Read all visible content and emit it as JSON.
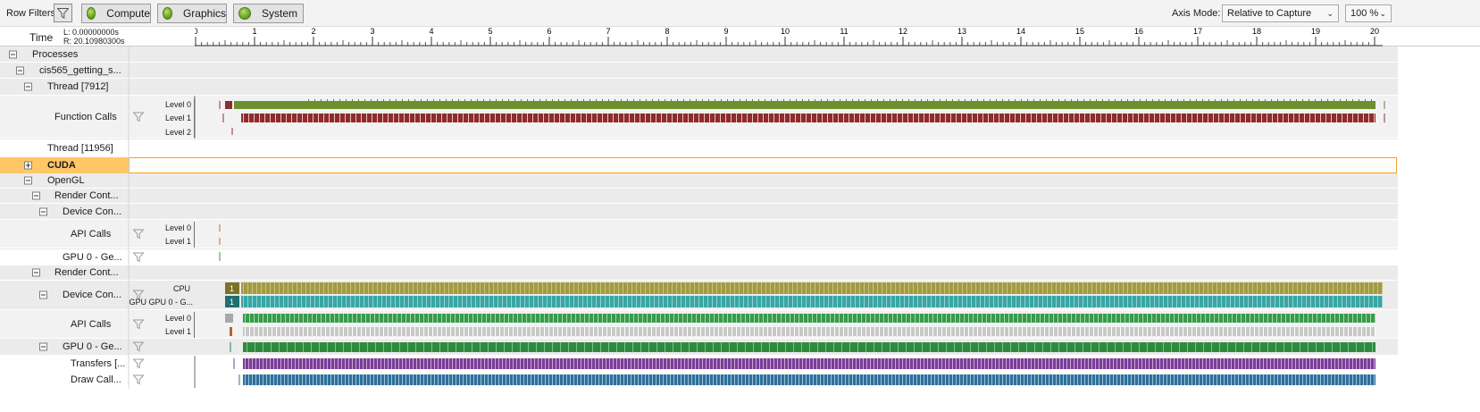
{
  "toolbar": {
    "row_filters_label": "Row Filters",
    "buttons": [
      {
        "label": "Compute"
      },
      {
        "label": "Graphics"
      },
      {
        "label": "System"
      }
    ],
    "axis_mode_label": "Axis Mode:",
    "axis_mode_value": "Relative to Capture",
    "zoom_value": "100 %"
  },
  "time": {
    "title": "Time",
    "left": "L:  0.00000000s",
    "right": "R:  20.10980300s",
    "ticks": [
      "0",
      "1",
      "2",
      "3",
      "4",
      "5",
      "6",
      "7",
      "8",
      "9",
      "10",
      "11",
      "12",
      "13",
      "14",
      "15",
      "16",
      "17",
      "18",
      "19",
      "20"
    ]
  },
  "rows": {
    "processes": "Processes",
    "process_name": "cis565_getting_s...",
    "thread1": "Thread [7912]",
    "function_calls": "Function Calls",
    "thread2": "Thread [11956]",
    "cuda": "CUDA",
    "opengl": "OpenGL",
    "render_context_1": "Render Cont...",
    "device_context_1": "Device Con...",
    "api_calls_1": "API Calls",
    "gpu_1": "GPU 0 - Ge...",
    "render_context_2": "Render Cont...",
    "device_context_2": "Device Con...",
    "api_calls_2": "API Calls",
    "gpu_2": "GPU 0 - Ge...",
    "transfers": "Transfers [...",
    "draw_calls": "Draw Call..."
  },
  "levels": {
    "level0": "Level 0",
    "level1": "Level 1",
    "level2": "Level 2",
    "cpu": "CPU",
    "gpu": "GPU GPU 0 - G..."
  },
  "badges": {
    "cpu_count": "1",
    "gpu_count": "1"
  },
  "colors": {
    "selected_row": "#ffc766",
    "function_level0": "#6e8f2e",
    "function_level1": "#8e2c2c",
    "cpu_track": "#a39a45",
    "gpu_track": "#3aa5a5",
    "api_level0": "#3a9a4c",
    "api_level1": "#c8c8c8",
    "gpu_track_2": "#2f8a3e",
    "transfers": "#7a3d95",
    "draw_calls": "#2f6f9a"
  },
  "icons": {
    "filter": "filter-icon",
    "toggle_collapse": "collapse-icon",
    "toggle_expand": "expand-icon"
  }
}
